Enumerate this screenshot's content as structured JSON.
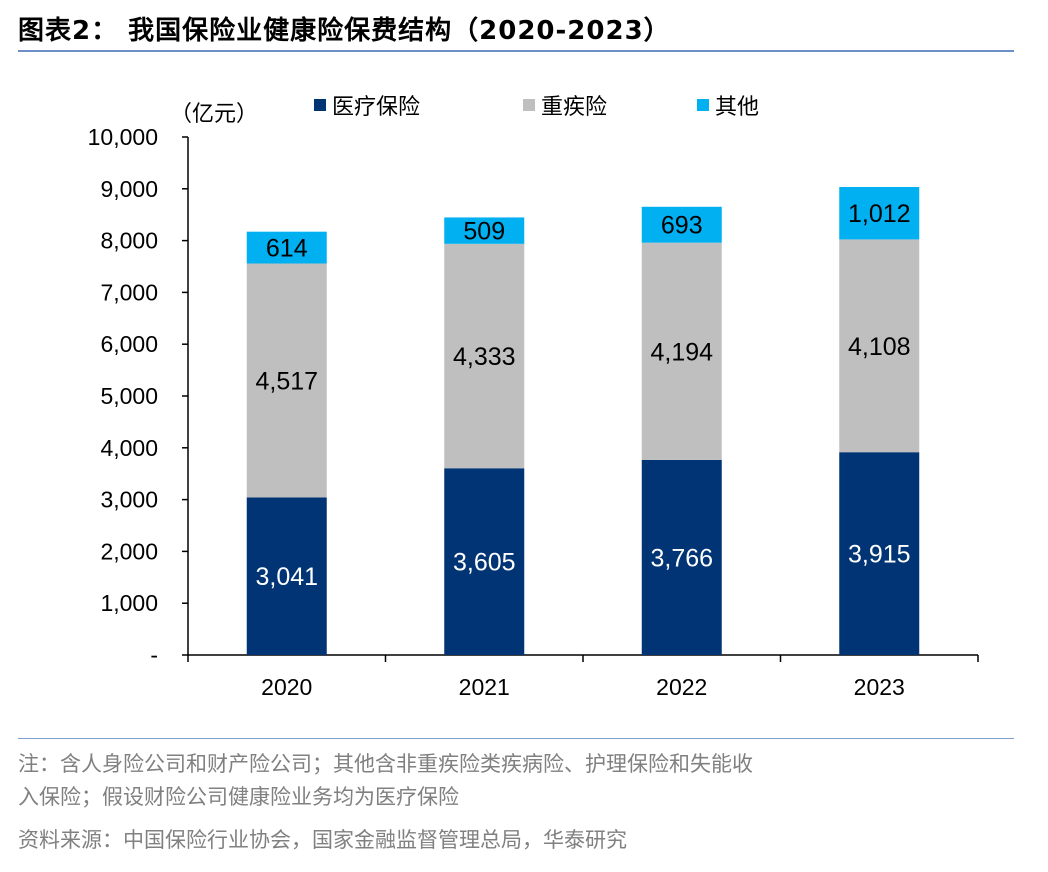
{
  "title": "图表2：  我国保险业健康险保费结构（2020-2023）",
  "notes": {
    "line1": "注：含人身险公司和财产险公司；其他含非重疾险类疾病险、护理保险和失能收",
    "line2": "入保险；假设财险公司健康险业务均为医疗保险",
    "source": "资料来源：中国保险行业协会，国家金融监督管理总局，华泰研究"
  },
  "colors": {
    "medical": "#003474",
    "critical": "#bfbfbf",
    "other": "#00b0f0"
  },
  "chart_data": {
    "type": "bar",
    "stacked": true,
    "unit_label": "（亿元）",
    "categories": [
      "2020",
      "2021",
      "2022",
      "2023"
    ],
    "series": [
      {
        "name": "医疗保险",
        "values": [
          3041,
          3605,
          3766,
          3915
        ],
        "labels": [
          "3,041",
          "3,605",
          "3,766",
          "3,915"
        ]
      },
      {
        "name": "重疾险",
        "values": [
          4517,
          4333,
          4194,
          4108
        ],
        "labels": [
          "4,517",
          "4,333",
          "4,194",
          "4,108"
        ]
      },
      {
        "name": "其他",
        "values": [
          614,
          509,
          693,
          1012
        ],
        "labels": [
          "614",
          "509",
          "693",
          "1,012"
        ]
      }
    ],
    "ylim": [
      0,
      10000
    ],
    "yticks": [
      0,
      1000,
      2000,
      3000,
      4000,
      5000,
      6000,
      7000,
      8000,
      9000,
      10000
    ],
    "ytick_labels": [
      "-",
      "1,000",
      "2,000",
      "3,000",
      "4,000",
      "5,000",
      "6,000",
      "7,000",
      "8,000",
      "9,000",
      "10,000"
    ],
    "legend_position": "top",
    "grid": false
  }
}
